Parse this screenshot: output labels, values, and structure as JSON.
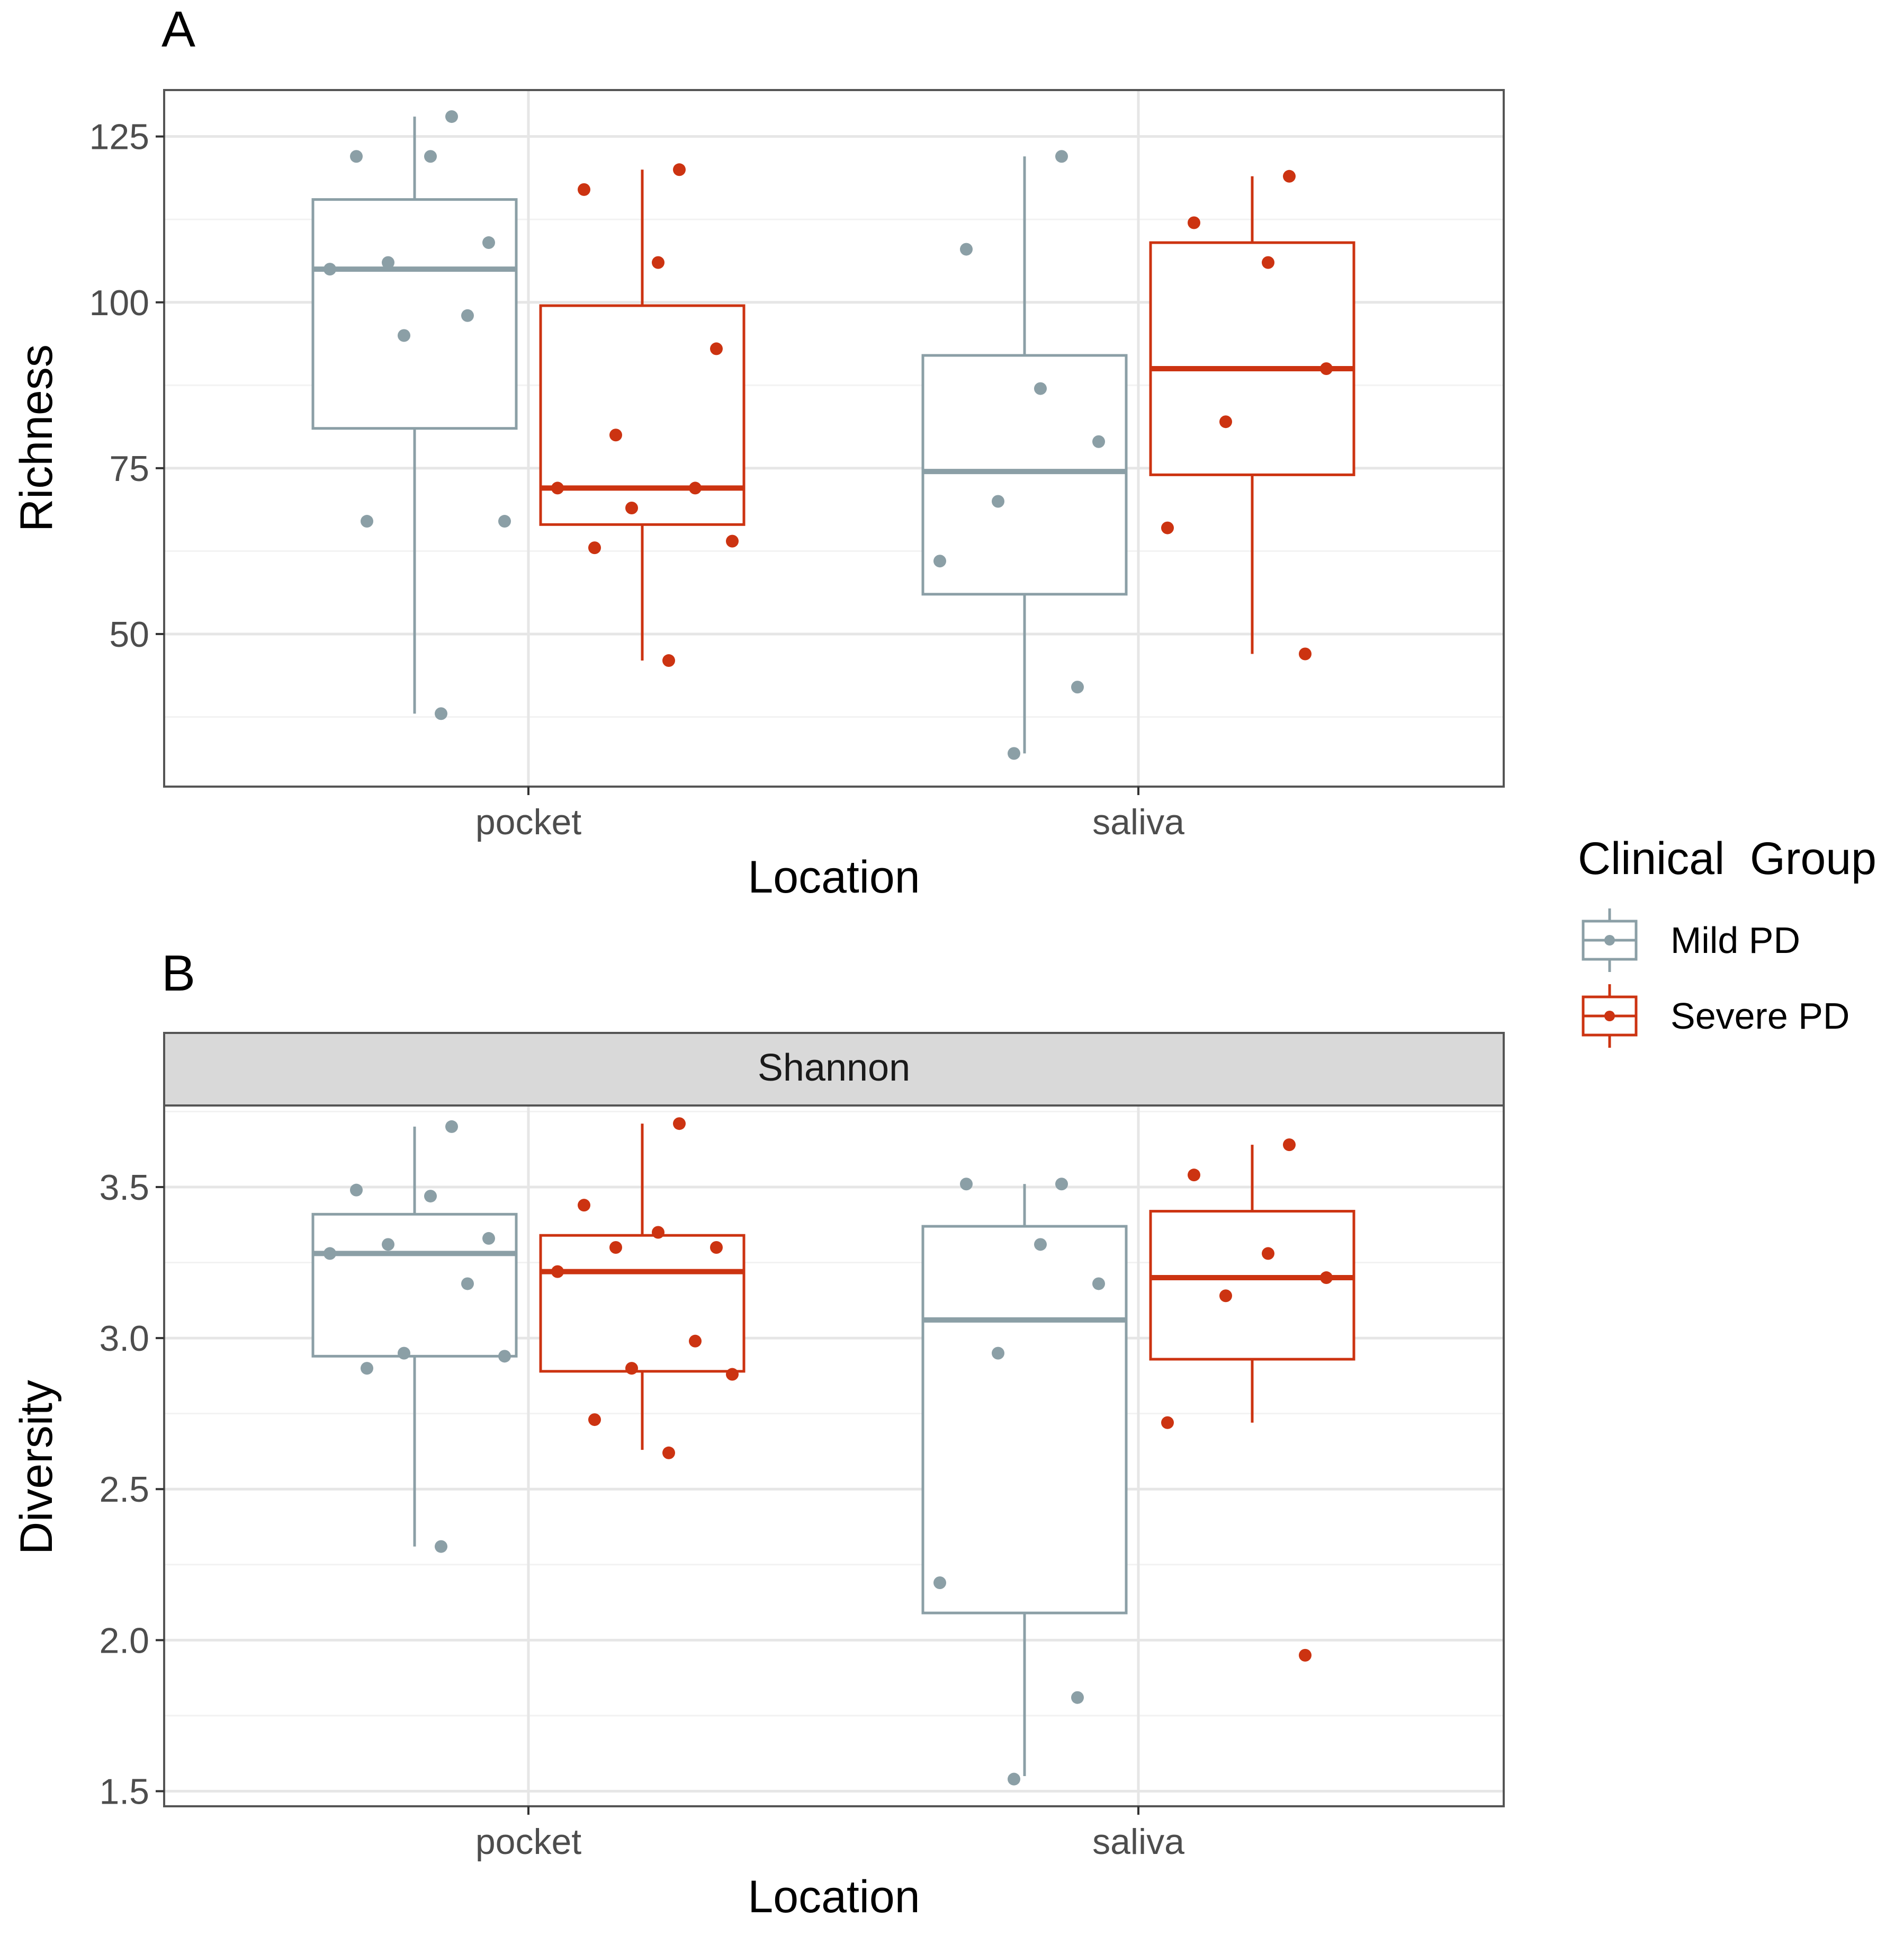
{
  "colors": {
    "mild": "#8b9fa6",
    "severe": "#cc3311",
    "panel_border": "#555555",
    "grid_major": "#e6e6e6",
    "grid_minor": "#f2f2f2",
    "strip_fill": "#d9d9d9",
    "tick_text": "#4d4d4d"
  },
  "legend": {
    "title": "Clinical  Group",
    "items": [
      {
        "key": "mild",
        "label": "Mild PD"
      },
      {
        "key": "severe",
        "label": "Severe PD"
      }
    ]
  },
  "chart_data": [
    {
      "type": "box",
      "panel_label": "A",
      "title": "",
      "xlabel": "Location",
      "ylabel": "Richness",
      "categories": [
        "pocket",
        "saliva"
      ],
      "ylim": [
        27,
        132
      ],
      "yticks": [
        50,
        75,
        100,
        125
      ],
      "grid": true,
      "series": [
        {
          "name": "Mild PD",
          "color_key": "mild",
          "boxes": [
            {
              "category": "pocket",
              "min": 38,
              "q1": 81,
              "median": 105,
              "q3": 115.5,
              "max": 128,
              "points": [
                128,
                122,
                122,
                109,
                106,
                105,
                98,
                95,
                67,
                67,
                38
              ]
            },
            {
              "category": "saliva",
              "min": 32,
              "q1": 56,
              "median": 74.5,
              "q3": 92,
              "max": 122,
              "points": [
                122,
                108,
                87,
                79,
                70,
                61,
                42,
                32
              ]
            }
          ]
        },
        {
          "name": "Severe PD",
          "color_key": "severe",
          "boxes": [
            {
              "category": "pocket",
              "min": 46,
              "q1": 66.5,
              "median": 72,
              "q3": 99.5,
              "max": 120,
              "points": [
                120,
                117,
                106,
                93,
                80,
                72,
                72,
                69,
                64,
                63,
                46
              ]
            },
            {
              "category": "saliva",
              "min": 47,
              "q1": 74,
              "median": 90,
              "q3": 109,
              "max": 119,
              "points": [
                119,
                112,
                106,
                90,
                82,
                66,
                47
              ]
            }
          ]
        }
      ]
    },
    {
      "type": "box",
      "panel_label": "B",
      "facet_strip": "Shannon",
      "title": "",
      "xlabel": "Location",
      "ylabel": "Diversity",
      "categories": [
        "pocket",
        "saliva"
      ],
      "ylim": [
        1.45,
        3.77
      ],
      "yticks": [
        "1.5",
        "2.0",
        "2.5",
        "3.0",
        "3.5"
      ],
      "grid": true,
      "series": [
        {
          "name": "Mild PD",
          "color_key": "mild",
          "boxes": [
            {
              "category": "pocket",
              "min": 2.31,
              "q1": 2.94,
              "median": 3.28,
              "q3": 3.41,
              "max": 3.7,
              "points": [
                3.7,
                3.49,
                3.47,
                3.33,
                3.31,
                3.28,
                3.18,
                2.95,
                2.94,
                2.9,
                2.31
              ]
            },
            {
              "category": "saliva",
              "min": 1.55,
              "q1": 2.09,
              "median": 3.06,
              "q3": 3.37,
              "max": 3.51,
              "points": [
                3.51,
                3.51,
                3.31,
                3.18,
                2.95,
                2.19,
                1.81,
                1.54
              ]
            }
          ]
        },
        {
          "name": "Severe PD",
          "color_key": "severe",
          "boxes": [
            {
              "category": "pocket",
              "min": 2.63,
              "q1": 2.89,
              "median": 3.22,
              "q3": 3.34,
              "max": 3.71,
              "points": [
                3.71,
                3.44,
                3.35,
                3.3,
                3.3,
                3.22,
                2.99,
                2.9,
                2.88,
                2.73,
                2.62
              ]
            },
            {
              "category": "saliva",
              "min": 2.72,
              "q1": 2.93,
              "median": 3.2,
              "q3": 3.42,
              "max": 3.64,
              "points": [
                3.64,
                3.54,
                3.28,
                3.2,
                3.14,
                2.72,
                1.95
              ]
            }
          ]
        }
      ]
    }
  ]
}
